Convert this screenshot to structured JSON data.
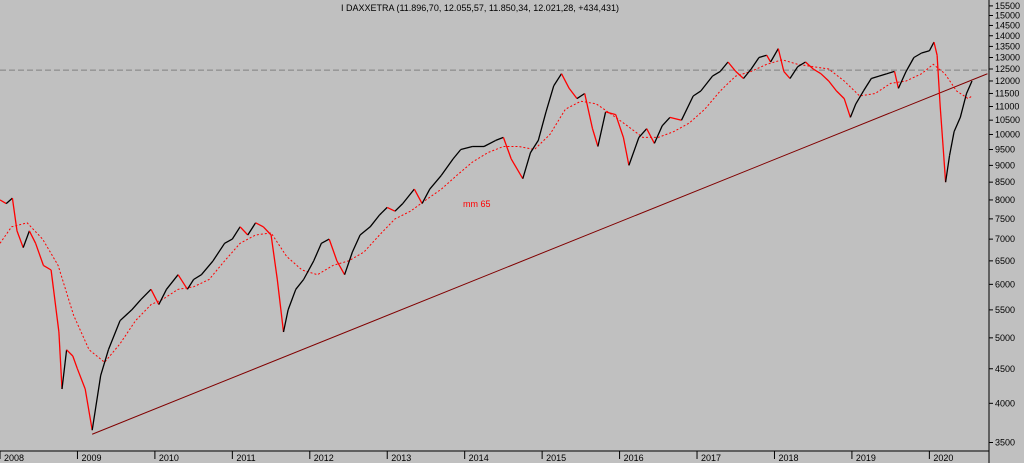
{
  "chart_data": {
    "type": "line",
    "title": "I DAXXETRA (11.896,70, 12.055,57, 11.850,34, 12.021,28, +434,431)",
    "ma_label": "mm 65",
    "y_scale": "log",
    "ylim": [
      3400,
      15600
    ],
    "xlim": [
      2008.0,
      2020.77
    ],
    "y_ticks": [
      3500,
      4000,
      4500,
      5000,
      5500,
      6000,
      6500,
      7000,
      7500,
      8000,
      8500,
      9000,
      9500,
      10000,
      10500,
      11000,
      11500,
      12000,
      12500,
      13000,
      13500,
      14000,
      14500,
      15000,
      15500
    ],
    "y_tick_labels": [
      "3500",
      "4000",
      "4500",
      "5000",
      "5500",
      "6000",
      "6500",
      "7000",
      "7500",
      "8000",
      "8500",
      "9000",
      "9500",
      "10000",
      "10500",
      "11000",
      "11500",
      "12000",
      "12500",
      "13000",
      "13500",
      "14000",
      "14500",
      "15000",
      "15500"
    ],
    "x_ticks": [
      2008,
      2009,
      2010,
      2011,
      2012,
      2013,
      2014,
      2015,
      2016,
      2017,
      2018,
      2019,
      2020
    ],
    "x_tick_labels": [
      "2008",
      "2009",
      "2010",
      "2011",
      "2012",
      "2013",
      "2014",
      "2015",
      "2016",
      "2017",
      "2018",
      "2019",
      "2020"
    ],
    "reference_level": 12450,
    "trendline": {
      "from": [
        2009.19,
        3600
      ],
      "to": [
        2020.75,
        12300
      ]
    },
    "series": [
      {
        "values": [
          [
            2008.0,
            8000
          ],
          [
            2008.08,
            7900
          ],
          [
            2008.16,
            8050
          ],
          [
            2008.22,
            7200
          ],
          [
            2008.3,
            6800
          ],
          [
            2008.38,
            7200
          ],
          [
            2008.46,
            6900
          ],
          [
            2008.56,
            6400
          ],
          [
            2008.66,
            6300
          ],
          [
            2008.76,
            5100
          ],
          [
            2008.8,
            4200
          ],
          [
            2008.86,
            4800
          ],
          [
            2008.94,
            4700
          ],
          [
            2009.0,
            4500
          ],
          [
            2009.1,
            4200
          ],
          [
            2009.19,
            3650
          ],
          [
            2009.3,
            4400
          ],
          [
            2009.4,
            4800
          ],
          [
            2009.55,
            5300
          ],
          [
            2009.7,
            5500
          ],
          [
            2009.82,
            5700
          ],
          [
            2009.95,
            5900
          ],
          [
            2010.05,
            5600
          ],
          [
            2010.15,
            5900
          ],
          [
            2010.3,
            6200
          ],
          [
            2010.42,
            5900
          ],
          [
            2010.5,
            6100
          ],
          [
            2010.6,
            6200
          ],
          [
            2010.75,
            6500
          ],
          [
            2010.9,
            6900
          ],
          [
            2011.0,
            7000
          ],
          [
            2011.1,
            7300
          ],
          [
            2011.2,
            7100
          ],
          [
            2011.3,
            7400
          ],
          [
            2011.4,
            7300
          ],
          [
            2011.5,
            7100
          ],
          [
            2011.58,
            6100
          ],
          [
            2011.66,
            5100
          ],
          [
            2011.72,
            5500
          ],
          [
            2011.82,
            5900
          ],
          [
            2011.92,
            6100
          ],
          [
            2012.05,
            6500
          ],
          [
            2012.15,
            6900
          ],
          [
            2012.25,
            7000
          ],
          [
            2012.35,
            6500
          ],
          [
            2012.45,
            6200
          ],
          [
            2012.55,
            6700
          ],
          [
            2012.65,
            7100
          ],
          [
            2012.78,
            7300
          ],
          [
            2012.9,
            7600
          ],
          [
            2013.0,
            7800
          ],
          [
            2013.1,
            7700
          ],
          [
            2013.2,
            7900
          ],
          [
            2013.35,
            8300
          ],
          [
            2013.45,
            7900
          ],
          [
            2013.55,
            8300
          ],
          [
            2013.7,
            8700
          ],
          [
            2013.85,
            9200
          ],
          [
            2013.95,
            9500
          ],
          [
            2014.1,
            9600
          ],
          [
            2014.25,
            9600
          ],
          [
            2014.4,
            9800
          ],
          [
            2014.5,
            9900
          ],
          [
            2014.6,
            9200
          ],
          [
            2014.75,
            8600
          ],
          [
            2014.85,
            9400
          ],
          [
            2014.95,
            9800
          ],
          [
            2015.05,
            10800
          ],
          [
            2015.15,
            11800
          ],
          [
            2015.25,
            12300
          ],
          [
            2015.35,
            11700
          ],
          [
            2015.45,
            11300
          ],
          [
            2015.55,
            11500
          ],
          [
            2015.65,
            10200
          ],
          [
            2015.72,
            9600
          ],
          [
            2015.82,
            10800
          ],
          [
            2015.95,
            10700
          ],
          [
            2016.05,
            9900
          ],
          [
            2016.12,
            9000
          ],
          [
            2016.25,
            9900
          ],
          [
            2016.35,
            10200
          ],
          [
            2016.45,
            9700
          ],
          [
            2016.55,
            10300
          ],
          [
            2016.65,
            10600
          ],
          [
            2016.8,
            10500
          ],
          [
            2016.95,
            11400
          ],
          [
            2017.05,
            11600
          ],
          [
            2017.2,
            12200
          ],
          [
            2017.3,
            12400
          ],
          [
            2017.4,
            12800
          ],
          [
            2017.5,
            12400
          ],
          [
            2017.6,
            12100
          ],
          [
            2017.7,
            12500
          ],
          [
            2017.8,
            13000
          ],
          [
            2017.9,
            13100
          ],
          [
            2017.95,
            12800
          ],
          [
            2018.05,
            13400
          ],
          [
            2018.12,
            12400
          ],
          [
            2018.2,
            12100
          ],
          [
            2018.3,
            12600
          ],
          [
            2018.4,
            12800
          ],
          [
            2018.5,
            12500
          ],
          [
            2018.6,
            12300
          ],
          [
            2018.7,
            12000
          ],
          [
            2018.8,
            11600
          ],
          [
            2018.9,
            11300
          ],
          [
            2018.98,
            10600
          ],
          [
            2019.05,
            11100
          ],
          [
            2019.15,
            11600
          ],
          [
            2019.25,
            12100
          ],
          [
            2019.35,
            12200
          ],
          [
            2019.45,
            12300
          ],
          [
            2019.55,
            12400
          ],
          [
            2019.6,
            11700
          ],
          [
            2019.7,
            12400
          ],
          [
            2019.8,
            13000
          ],
          [
            2019.9,
            13200
          ],
          [
            2020.0,
            13300
          ],
          [
            2020.06,
            13700
          ],
          [
            2020.1,
            13100
          ],
          [
            2020.14,
            11000
          ],
          [
            2020.18,
            9500
          ],
          [
            2020.21,
            8500
          ],
          [
            2020.26,
            9300
          ],
          [
            2020.32,
            10100
          ],
          [
            2020.4,
            10600
          ],
          [
            2020.48,
            11500
          ],
          [
            2020.55,
            12000
          ]
        ]
      },
      {
        "values": [
          [
            2008.0,
            6900
          ],
          [
            2008.15,
            7300
          ],
          [
            2008.35,
            7400
          ],
          [
            2008.55,
            7000
          ],
          [
            2008.75,
            6400
          ],
          [
            2008.95,
            5400
          ],
          [
            2009.15,
            4800
          ],
          [
            2009.35,
            4600
          ],
          [
            2009.55,
            4900
          ],
          [
            2009.75,
            5300
          ],
          [
            2009.95,
            5600
          ],
          [
            2010.1,
            5700
          ],
          [
            2010.3,
            5900
          ],
          [
            2010.5,
            5950
          ],
          [
            2010.7,
            6100
          ],
          [
            2010.9,
            6500
          ],
          [
            2011.1,
            6900
          ],
          [
            2011.3,
            7100
          ],
          [
            2011.5,
            7150
          ],
          [
            2011.7,
            6600
          ],
          [
            2011.9,
            6300
          ],
          [
            2012.1,
            6200
          ],
          [
            2012.3,
            6400
          ],
          [
            2012.5,
            6500
          ],
          [
            2012.7,
            6700
          ],
          [
            2012.9,
            7100
          ],
          [
            2013.1,
            7500
          ],
          [
            2013.3,
            7700
          ],
          [
            2013.5,
            8000
          ],
          [
            2013.7,
            8300
          ],
          [
            2013.9,
            8700
          ],
          [
            2014.1,
            9100
          ],
          [
            2014.3,
            9400
          ],
          [
            2014.5,
            9600
          ],
          [
            2014.7,
            9600
          ],
          [
            2014.9,
            9500
          ],
          [
            2015.1,
            10000
          ],
          [
            2015.3,
            10900
          ],
          [
            2015.5,
            11200
          ],
          [
            2015.7,
            11100
          ],
          [
            2015.9,
            10700
          ],
          [
            2016.1,
            10300
          ],
          [
            2016.3,
            9900
          ],
          [
            2016.5,
            9900
          ],
          [
            2016.7,
            10100
          ],
          [
            2016.9,
            10400
          ],
          [
            2017.1,
            10900
          ],
          [
            2017.3,
            11600
          ],
          [
            2017.5,
            12200
          ],
          [
            2017.7,
            12400
          ],
          [
            2017.9,
            12700
          ],
          [
            2018.1,
            12900
          ],
          [
            2018.3,
            12700
          ],
          [
            2018.5,
            12600
          ],
          [
            2018.7,
            12500
          ],
          [
            2018.9,
            12000
          ],
          [
            2019.1,
            11400
          ],
          [
            2019.3,
            11500
          ],
          [
            2019.5,
            11900
          ],
          [
            2019.7,
            12000
          ],
          [
            2019.9,
            12300
          ],
          [
            2020.05,
            12700
          ],
          [
            2020.2,
            12300
          ],
          [
            2020.35,
            11600
          ],
          [
            2020.5,
            11300
          ],
          [
            2020.55,
            11400
          ]
        ]
      }
    ]
  },
  "colors": {
    "background": "#c0c0c0",
    "price_up": "#000000",
    "price_down": "#ff0000",
    "moving_average": "#ff0000",
    "trendline": "#800000",
    "reference_line": "#808080"
  }
}
